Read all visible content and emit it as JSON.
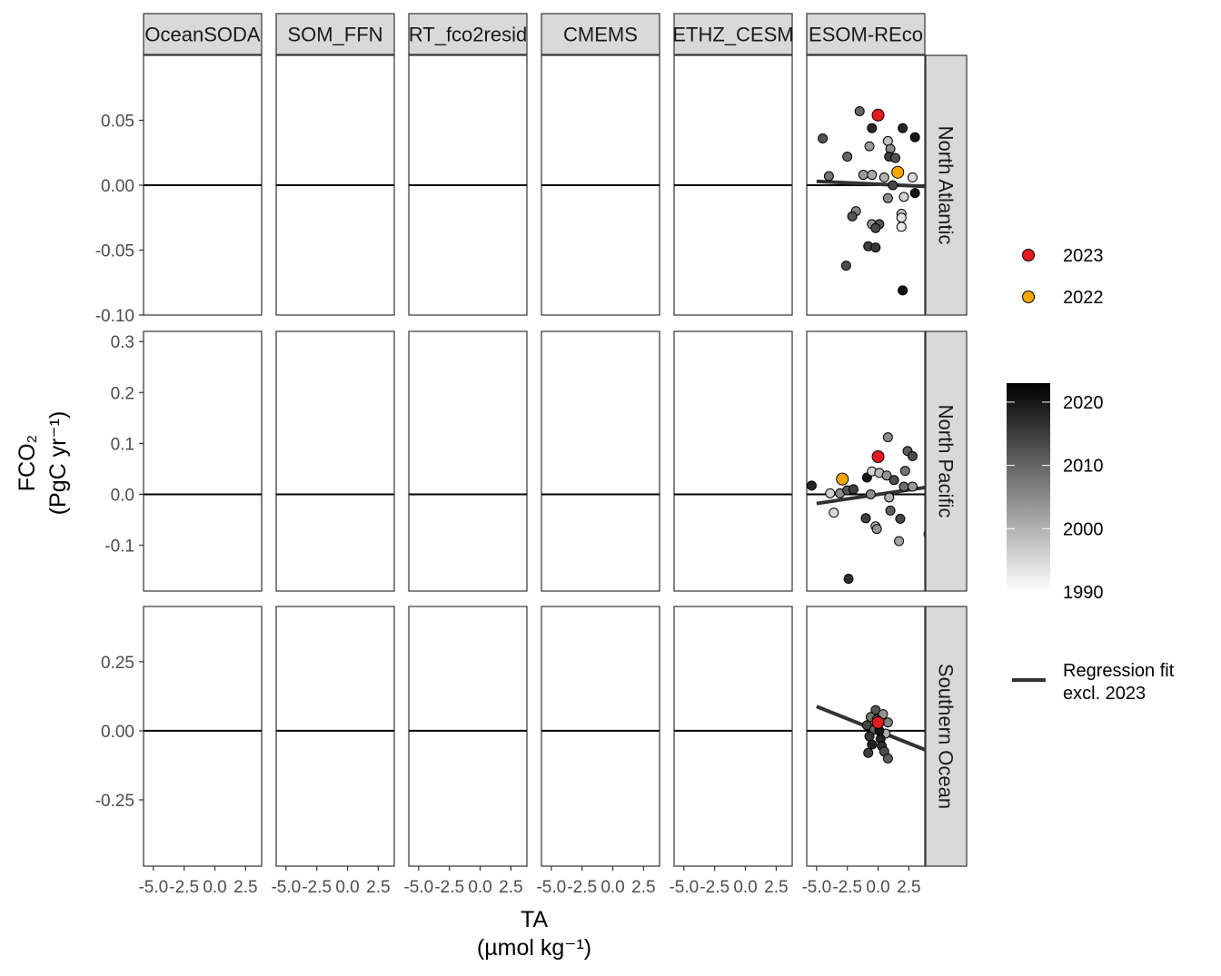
{
  "chart_data": {
    "type": "scatter",
    "layout": "facet_grid",
    "xlabel": "TA",
    "xlabel_unit": "(µmol kg⁻¹)",
    "ylabel": "FCO₂",
    "ylabel_unit": "(PgC yr⁻¹)",
    "facet_columns": [
      "OceanSODA",
      "SOM_FFN",
      "RT_fco2resid",
      "CMEMS",
      "ETHZ_CESM",
      "ESOM-REco"
    ],
    "facet_column_labels": [
      "OceanSODA",
      "SOM_FFN",
      "RT_fco2resid",
      "CMEMS",
      "ETHZ_CESM",
      "ESOM-REco"
    ],
    "facet_rows": [
      "North Atlantic",
      "North Pacific",
      "Southern Ocean"
    ],
    "x_ticks": [
      -5.0,
      -2.5,
      0.0,
      2.5
    ],
    "x_tick_labels": [
      "-5.0",
      "-2.5",
      "0.0",
      "2.5"
    ],
    "xlim": [
      -5.8,
      3.8
    ],
    "rows": [
      {
        "name": "North Atlantic",
        "ylim": [
          -0.1,
          0.1
        ],
        "y_ticks": [
          -0.1,
          -0.05,
          0.0,
          0.05
        ],
        "y_tick_labels": [
          "-0.10",
          "-0.05",
          "0.00",
          "0.05"
        ],
        "fit_excl_2023": [
          [
            -5.0,
            0.003
          ],
          [
            4.0,
            -0.001
          ]
        ],
        "points": [
          {
            "x": -1.5,
            "y": 0.057,
            "year": 2010
          },
          {
            "x": -4.5,
            "y": 0.036,
            "year": 2012
          },
          {
            "x": -2.5,
            "y": 0.022,
            "year": 2010
          },
          {
            "x": -4.0,
            "y": 0.007,
            "year": 2008
          },
          {
            "x": -1.2,
            "y": 0.008,
            "year": 2003
          },
          {
            "x": -0.5,
            "y": 0.008,
            "year": 2001
          },
          {
            "x": -1.8,
            "y": -0.02,
            "year": 2006
          },
          {
            "x": -2.1,
            "y": -0.024,
            "year": 2012
          },
          {
            "x": -0.5,
            "y": -0.03,
            "year": 2004
          },
          {
            "x": 0.1,
            "y": -0.03,
            "year": 2012
          },
          {
            "x": -0.2,
            "y": -0.033,
            "year": 2014
          },
          {
            "x": -0.8,
            "y": -0.047,
            "year": 2015
          },
          {
            "x": -0.2,
            "y": -0.048,
            "year": 2016
          },
          {
            "x": -2.6,
            "y": -0.062,
            "year": 2013
          },
          {
            "x": 2.0,
            "y": -0.081,
            "year": 2021
          },
          {
            "x": -0.5,
            "y": 0.044,
            "year": 2018
          },
          {
            "x": -0.7,
            "y": 0.03,
            "year": 2003
          },
          {
            "x": 0.8,
            "y": 0.034,
            "year": 1998
          },
          {
            "x": 1.0,
            "y": 0.028,
            "year": 2005
          },
          {
            "x": 0.9,
            "y": 0.022,
            "year": 2015
          },
          {
            "x": 1.4,
            "y": 0.021,
            "year": 2012
          },
          {
            "x": 2.0,
            "y": 0.044,
            "year": 2018
          },
          {
            "x": 3.0,
            "y": 0.037,
            "year": 2020
          },
          {
            "x": 0.5,
            "y": 0.006,
            "year": 2000
          },
          {
            "x": 0.8,
            "y": -0.01,
            "year": 2005
          },
          {
            "x": 2.1,
            "y": -0.009,
            "year": 1996
          },
          {
            "x": 3.0,
            "y": -0.006,
            "year": 2020
          },
          {
            "x": 2.8,
            "y": 0.006,
            "year": 1995
          },
          {
            "x": 1.9,
            "y": -0.022,
            "year": 1997
          },
          {
            "x": 1.9,
            "y": -0.025,
            "year": 1994
          },
          {
            "x": 1.9,
            "y": -0.032,
            "year": 1993
          },
          {
            "x": 1.2,
            "y": 0.0,
            "year": 2014
          }
        ],
        "highlights": [
          {
            "x": 0.0,
            "y": 0.054,
            "year": 2023
          },
          {
            "x": 1.6,
            "y": 0.01,
            "year": 2022
          }
        ]
      },
      {
        "name": "North Pacific",
        "ylim": [
          -0.19,
          0.32
        ],
        "y_ticks": [
          -0.1,
          0.0,
          0.1,
          0.2,
          0.3
        ],
        "y_tick_labels": [
          "-0.1",
          "0.0",
          "0.1",
          "0.2",
          "0.3"
        ],
        "fit_excl_2023": [
          [
            -5.0,
            -0.018
          ],
          [
            4.0,
            0.014
          ]
        ],
        "points": [
          {
            "x": -5.4,
            "y": 0.017,
            "year": 2018
          },
          {
            "x": -3.9,
            "y": 0.002,
            "year": 1996
          },
          {
            "x": -3.6,
            "y": -0.036,
            "year": 1995
          },
          {
            "x": -3.1,
            "y": 0.002,
            "year": 2005
          },
          {
            "x": -2.5,
            "y": 0.008,
            "year": 2012
          },
          {
            "x": -2.0,
            "y": 0.01,
            "year": 2015
          },
          {
            "x": -0.9,
            "y": 0.033,
            "year": 2020
          },
          {
            "x": -0.5,
            "y": 0.045,
            "year": 1996
          },
          {
            "x": 0.1,
            "y": 0.042,
            "year": 1999
          },
          {
            "x": 0.8,
            "y": 0.112,
            "year": 2005
          },
          {
            "x": 0.7,
            "y": 0.037,
            "year": 2004
          },
          {
            "x": 1.3,
            "y": 0.028,
            "year": 2013
          },
          {
            "x": 2.2,
            "y": 0.046,
            "year": 2008
          },
          {
            "x": 2.4,
            "y": 0.085,
            "year": 2011
          },
          {
            "x": 2.8,
            "y": 0.075,
            "year": 2013
          },
          {
            "x": 2.1,
            "y": 0.015,
            "year": 2009
          },
          {
            "x": 2.8,
            "y": 0.015,
            "year": 2003
          },
          {
            "x": 4.3,
            "y": 0.044,
            "year": 2012
          },
          {
            "x": -1.0,
            "y": -0.047,
            "year": 2015
          },
          {
            "x": -0.2,
            "y": -0.063,
            "year": 1999
          },
          {
            "x": -0.1,
            "y": -0.068,
            "year": 2004
          },
          {
            "x": 1.0,
            "y": -0.032,
            "year": 2011
          },
          {
            "x": 0.9,
            "y": -0.006,
            "year": 2000
          },
          {
            "x": 1.8,
            "y": -0.048,
            "year": 2014
          },
          {
            "x": 1.7,
            "y": -0.092,
            "year": 2002
          },
          {
            "x": 4.1,
            "y": -0.078,
            "year": 2009
          },
          {
            "x": -2.4,
            "y": -0.166,
            "year": 2017
          },
          {
            "x": -0.6,
            "y": 0.0,
            "year": 2005
          }
        ],
        "highlights": [
          {
            "x": 0.0,
            "y": 0.074,
            "year": 2023
          },
          {
            "x": -2.9,
            "y": 0.03,
            "year": 2022
          }
        ]
      },
      {
        "name": "Southern Ocean",
        "ylim": [
          -0.49,
          0.45
        ],
        "y_ticks": [
          -0.25,
          0.0,
          0.25
        ],
        "y_tick_labels": [
          "-0.25",
          "0.00",
          "0.25"
        ],
        "fit_excl_2023": [
          [
            -5.0,
            0.088
          ],
          [
            4.0,
            -0.072
          ]
        ],
        "points": [
          {
            "x": -0.2,
            "y": 0.075,
            "year": 2012
          },
          {
            "x": 0.4,
            "y": 0.06,
            "year": 2004
          },
          {
            "x": -0.6,
            "y": 0.05,
            "year": 2008
          },
          {
            "x": 0.8,
            "y": 0.03,
            "year": 2006
          },
          {
            "x": -0.9,
            "y": 0.02,
            "year": 2014
          },
          {
            "x": -0.3,
            "y": 0.005,
            "year": 2010
          },
          {
            "x": 0.6,
            "y": -0.01,
            "year": 2000
          },
          {
            "x": -0.7,
            "y": -0.02,
            "year": 2016
          },
          {
            "x": 0.2,
            "y": -0.03,
            "year": 2018
          },
          {
            "x": -0.5,
            "y": -0.05,
            "year": 2019
          },
          {
            "x": 0.3,
            "y": -0.055,
            "year": 2017
          },
          {
            "x": -0.8,
            "y": -0.08,
            "year": 2015
          },
          {
            "x": 0.5,
            "y": -0.075,
            "year": 2013
          },
          {
            "x": 0.8,
            "y": -0.1,
            "year": 2011
          },
          {
            "x": -0.1,
            "y": 0.04,
            "year": 2003
          },
          {
            "x": 0.1,
            "y": 0.0,
            "year": 2020
          }
        ],
        "highlights": [
          {
            "x": 0.0,
            "y": 0.03,
            "year": 2023
          }
        ]
      }
    ],
    "legend": {
      "highlight_entries": [
        {
          "label": "2023",
          "color": "#e41a1c"
        },
        {
          "label": "2022",
          "color": "#f5a700"
        }
      ],
      "colorbar": {
        "min": 1990,
        "max": 2023,
        "ticks": [
          "2020",
          "2010",
          "2000",
          "1990"
        ],
        "low_color": "#ffffff",
        "high_color": "#000000"
      },
      "line_entry": {
        "label_line1": "Regression fit",
        "label_line2": "excl. 2023",
        "color": "#333333"
      },
      "placement": "right"
    },
    "grid": false,
    "colors": {
      "highlight_2023": "#e41a1c",
      "highlight_2022": "#f5a700",
      "fit_line": "#333333",
      "zero_line": "#000000",
      "strip_fill": "#d9d9d9"
    }
  }
}
